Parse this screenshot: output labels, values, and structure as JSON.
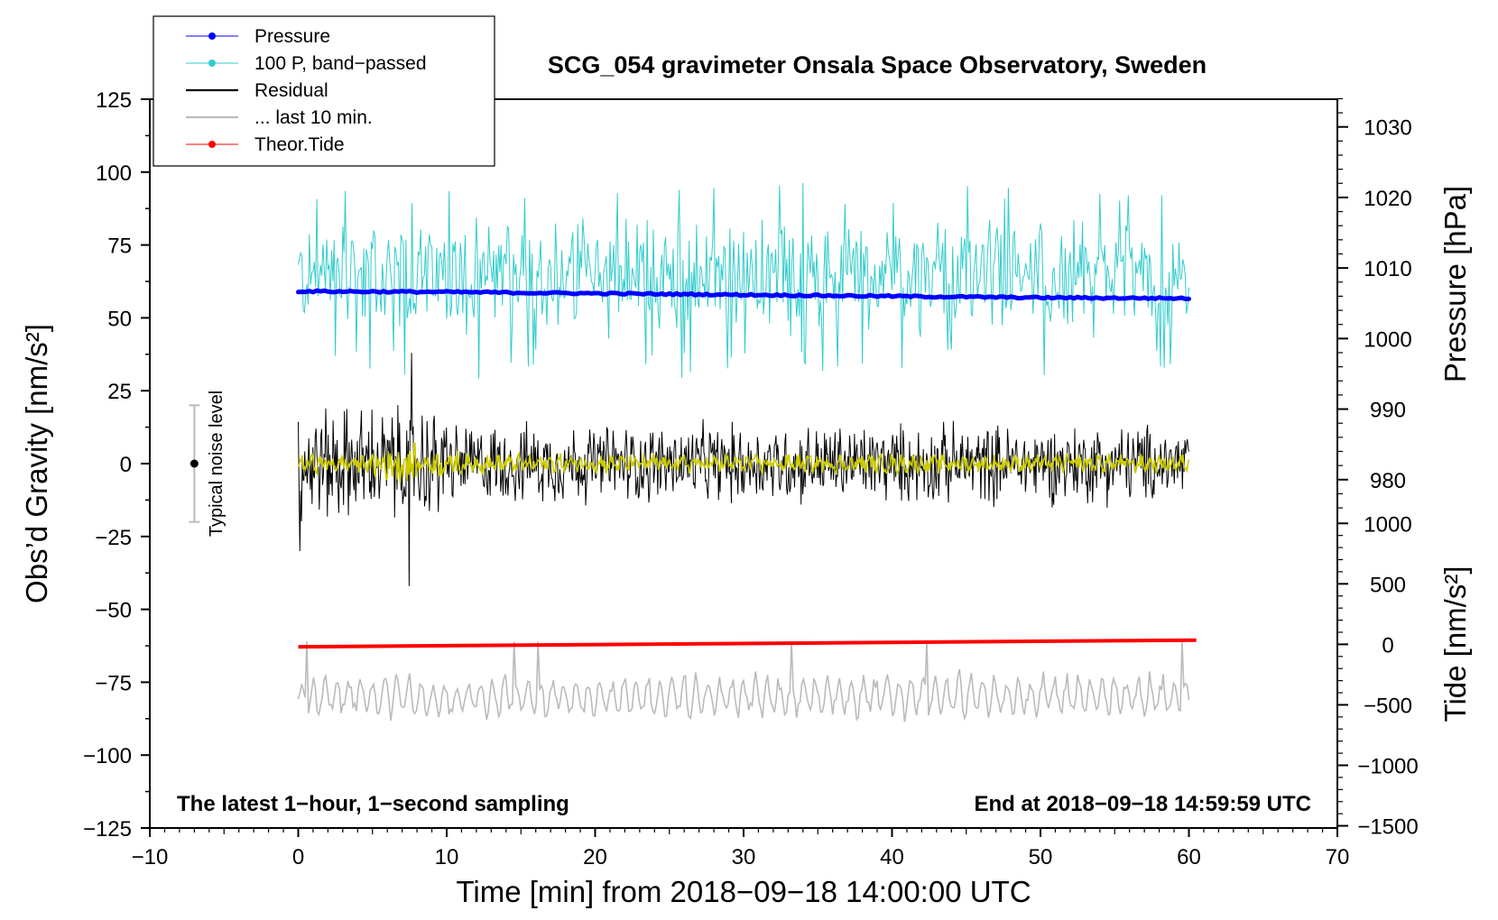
{
  "chart_data": {
    "type": "line",
    "title": "SCG_054 gravimeter Onsala Space Observatory, Sweden",
    "xlabel": "Time [min] from 2018−09−18 14:00:00 UTC",
    "ylabel_left": "Obs’d Gravity [nm/s²]",
    "ylabel_right_top": "Pressure [hPa]",
    "ylabel_right_bottom": "Tide [nm/s²]",
    "note_left": "The latest 1−hour, 1−second sampling",
    "note_right": "End at 2018−09−18 14:59:59 UTC",
    "noise_label": "Typical noise level",
    "noise_bar": {
      "x": -7,
      "center": 0,
      "range": [
        -20,
        20
      ]
    },
    "xlim": [
      -10,
      70
    ],
    "ylim": [
      -125,
      125
    ],
    "x_ticks": [
      "−10",
      "0",
      "10",
      "20",
      "30",
      "40",
      "50",
      "60",
      "70"
    ],
    "x_tick_values": [
      -10,
      0,
      10,
      20,
      30,
      40,
      50,
      60,
      70
    ],
    "y_ticks": [
      "125",
      "100",
      "75",
      "50",
      "25",
      "0",
      "−25",
      "−50",
      "−75",
      "−100",
      "−125"
    ],
    "y_tick_values": [
      125,
      100,
      75,
      50,
      25,
      0,
      -25,
      -50,
      -75,
      -100,
      -125
    ],
    "pressure_axis": {
      "ticks": [
        "1030",
        "1020",
        "1010",
        "1000",
        "990",
        "980"
      ],
      "values": [
        1030,
        1020,
        1010,
        1000,
        990,
        980
      ],
      "gravity_equiv_at_1030": 115.5,
      "gravity_per_hPa": 2.42
    },
    "tide_axis": {
      "ticks": [
        "1000",
        "500",
        "0",
        "−500",
        "−1000",
        "−1500"
      ],
      "values": [
        1000,
        500,
        0,
        -500,
        -1000,
        -1500
      ],
      "gravity_equiv_at_0": -62,
      "gravity_per_unit": 0.0415
    },
    "legend": [
      {
        "label": "Pressure",
        "color": "#0000ff",
        "marker": true
      },
      {
        "label": "100 P, band−passed",
        "color": "#33cccc",
        "marker": true
      },
      {
        "label": "Residual",
        "color": "#000000",
        "marker": false
      },
      {
        "label": "... last 10 min.",
        "color": "#bbbbbb",
        "marker": false
      },
      {
        "label": "Theor.Tide",
        "color": "#ff0000",
        "marker": true
      }
    ],
    "series": [
      {
        "name": "Pressure",
        "color": "#0000ff",
        "x": [
          0,
          10,
          20,
          30,
          40,
          50,
          60
        ],
        "values": [
          1006.7,
          1006.6,
          1006.4,
          1006.2,
          1006.0,
          1005.8,
          1005.7
        ],
        "units": "hPa"
      },
      {
        "name": "100 P, band−passed",
        "color": "#33cccc",
        "x_range": [
          0,
          60
        ],
        "center": 64,
        "amplitude": 22,
        "units": "nm/s² (plotted)"
      },
      {
        "name": "Residual",
        "color": "#000000",
        "x_range": [
          0,
          60
        ],
        "center": 0,
        "amplitude": 16,
        "extremes": [
          38,
          -42
        ],
        "units": "nm/s²"
      },
      {
        "name": "Residual (smoothed)",
        "color": "#cccc00",
        "x_range": [
          0,
          60
        ],
        "center": 0,
        "amplitude": 4,
        "units": "nm/s²"
      },
      {
        "name": "... last 10 min.",
        "color": "#bbbbbb",
        "x_range": [
          0,
          60
        ],
        "center": -80,
        "amplitude": 8,
        "units": "nm/s² (plotted)"
      },
      {
        "name": "Theor.Tide",
        "color": "#ff0000",
        "x": [
          0,
          60.5
        ],
        "values": [
          -20,
          35
        ],
        "units": "nm/s² (tide axis)"
      }
    ]
  }
}
